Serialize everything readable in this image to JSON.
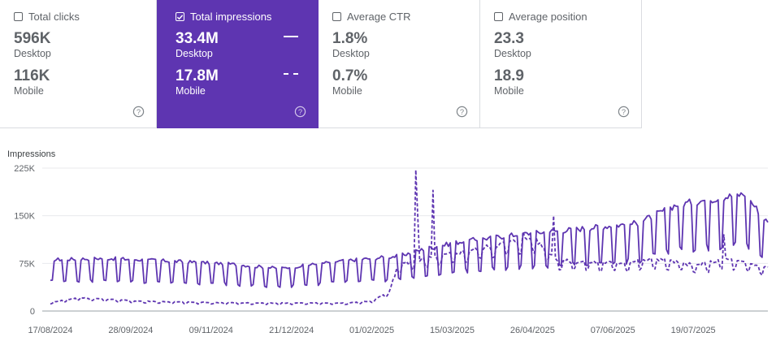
{
  "cards": [
    {
      "label": "Total clicks",
      "checked": false,
      "desktop": "596K",
      "mobile": "116K",
      "desktop_label": "Desktop",
      "mobile_label": "Mobile"
    },
    {
      "label": "Total impressions",
      "checked": true,
      "desktop": "33.4M",
      "mobile": "17.8M",
      "desktop_label": "Desktop",
      "mobile_label": "Mobile"
    },
    {
      "label": "Average CTR",
      "checked": false,
      "desktop": "1.8%",
      "mobile": "0.7%",
      "desktop_label": "Desktop",
      "mobile_label": "Mobile"
    },
    {
      "label": "Average position",
      "checked": false,
      "desktop": "23.3",
      "mobile": "18.9",
      "desktop_label": "Desktop",
      "mobile_label": "Mobile"
    }
  ],
  "colors": {
    "accent": "#5e35b1",
    "line": "#5e35b1",
    "grid": "#e8eaed"
  },
  "chart_data": {
    "type": "line",
    "ylabel": "Impressions",
    "ylim": [
      0,
      225000
    ],
    "yticks": [
      {
        "v": 0,
        "label": "0"
      },
      {
        "v": 75000,
        "label": "75K"
      },
      {
        "v": 150000,
        "label": "150K"
      },
      {
        "v": 225000,
        "label": "225K"
      }
    ],
    "x_start": "2024-08-17",
    "x_end": "2025-08-27",
    "xticks": [
      "17/08/2024",
      "28/09/2024",
      "09/11/2024",
      "21/12/2024",
      "01/02/2025",
      "15/03/2025",
      "26/04/2025",
      "07/06/2025",
      "19/07/2025"
    ],
    "series": [
      {
        "name": "Desktop",
        "style": "solid",
        "anchors": [
          [
            "2024-08-17",
            70000
          ],
          [
            "2024-09-15",
            72000
          ],
          [
            "2024-10-20",
            68000
          ],
          [
            "2024-11-20",
            64000
          ],
          [
            "2024-12-15",
            58000
          ],
          [
            "2025-01-15",
            68000
          ],
          [
            "2025-02-15",
            75000
          ],
          [
            "2025-03-01",
            85000
          ],
          [
            "2025-03-20",
            95000
          ],
          [
            "2025-04-20",
            105000
          ],
          [
            "2025-05-20",
            112000
          ],
          [
            "2025-06-20",
            120000
          ],
          [
            "2025-07-10",
            145000
          ],
          [
            "2025-08-15",
            160000
          ],
          [
            "2025-08-27",
            120000
          ]
        ],
        "amplitude": 0.34,
        "spikes": []
      },
      {
        "name": "Mobile",
        "style": "dashed",
        "anchors": [
          [
            "2024-08-17",
            13000
          ],
          [
            "2024-09-01",
            20000
          ],
          [
            "2024-10-01",
            15000
          ],
          [
            "2024-11-01",
            13000
          ],
          [
            "2024-12-01",
            12000
          ],
          [
            "2025-01-20",
            12000
          ],
          [
            "2025-02-01",
            15000
          ],
          [
            "2025-02-10",
            28000
          ],
          [
            "2025-02-15",
            70000
          ],
          [
            "2025-03-01",
            78000
          ],
          [
            "2025-04-01",
            95000
          ],
          [
            "2025-04-26",
            110000
          ],
          [
            "2025-05-10",
            75000
          ],
          [
            "2025-06-10",
            72000
          ],
          [
            "2025-07-01",
            78000
          ],
          [
            "2025-07-20",
            68000
          ],
          [
            "2025-08-05",
            78000
          ],
          [
            "2025-08-27",
            65000
          ]
        ],
        "amplitude": 0.12,
        "spikes": [
          [
            "2025-02-24",
            222000
          ],
          [
            "2025-02-25",
            150000
          ],
          [
            "2025-03-05",
            190000
          ],
          [
            "2025-04-21",
            125000
          ],
          [
            "2025-05-07",
            150000
          ],
          [
            "2025-08-04",
            120000
          ]
        ]
      }
    ]
  }
}
